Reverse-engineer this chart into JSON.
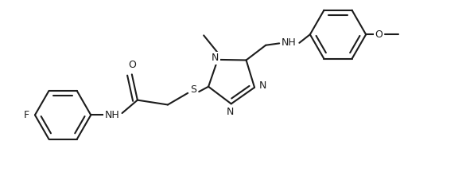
{
  "bg": "#ffffff",
  "lc": "#1c1c1c",
  "lw": 1.5,
  "fs": 9.0,
  "fig_w": 5.86,
  "fig_h": 2.36,
  "dpi": 100,
  "xlim": [
    0,
    10
  ],
  "ylim": [
    0,
    4
  ]
}
